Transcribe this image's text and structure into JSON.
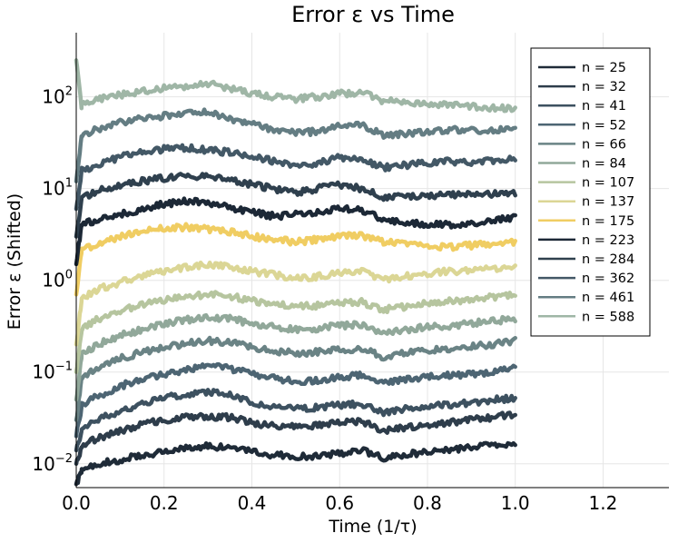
{
  "chart_data": {
    "type": "line",
    "title": "Error ε vs Time",
    "xlabel": "Time (1/τ)",
    "ylabel": "Error ε (Shifted)",
    "yscale": "log",
    "xlim": [
      0,
      1.35
    ],
    "ylim": [
      0.0055,
      500
    ],
    "xticks": [
      0.0,
      0.2,
      0.4,
      0.6,
      0.8,
      1.0,
      1.2
    ],
    "xtick_labels": [
      "0.0",
      "0.2",
      "0.4",
      "0.6",
      "0.8",
      "1.0",
      "1.2"
    ],
    "yticks": [
      0.01,
      0.1,
      1,
      10,
      100
    ],
    "ytick_labels": [
      {
        "base": "10",
        "exp": "−2"
      },
      {
        "base": "10",
        "exp": "−1"
      },
      {
        "base": "10",
        "exp": "0"
      },
      {
        "base": "10",
        "exp": "1"
      },
      {
        "base": "10",
        "exp": "2"
      }
    ],
    "grid": true,
    "legend_position": "top-right",
    "x": [
      0.0,
      0.05,
      0.1,
      0.15,
      0.2,
      0.25,
      0.3,
      0.35,
      0.4,
      0.45,
      0.5,
      0.55,
      0.6,
      0.65,
      0.7,
      0.75,
      0.8,
      0.85,
      0.9,
      0.95,
      1.0
    ],
    "series": [
      {
        "name": "n = 25",
        "color": "#1f2b38",
        "y0": 0.006,
        "values": [
          0.008,
          0.01,
          0.011,
          0.0125,
          0.0135,
          0.015,
          0.0155,
          0.015,
          0.0135,
          0.0125,
          0.012,
          0.012,
          0.013,
          0.014,
          0.0115,
          0.0125,
          0.0135,
          0.014,
          0.015,
          0.016,
          0.017
        ]
      },
      {
        "name": "n = 32",
        "color": "#2e3d4b",
        "y0": 0.01,
        "values": [
          0.015,
          0.019,
          0.023,
          0.027,
          0.03,
          0.032,
          0.033,
          0.032,
          0.028,
          0.026,
          0.025,
          0.026,
          0.028,
          0.029,
          0.023,
          0.025,
          0.026,
          0.028,
          0.03,
          0.032,
          0.035
        ]
      },
      {
        "name": "n = 41",
        "color": "#3d5160",
        "y0": 0.014,
        "values": [
          0.022,
          0.03,
          0.038,
          0.045,
          0.052,
          0.058,
          0.06,
          0.056,
          0.046,
          0.042,
          0.04,
          0.041,
          0.044,
          0.045,
          0.036,
          0.04,
          0.042,
          0.044,
          0.046,
          0.05,
          0.052
        ]
      },
      {
        "name": "n = 52",
        "color": "#4d6573",
        "y0": 0.02,
        "values": [
          0.04,
          0.055,
          0.07,
          0.085,
          0.095,
          0.105,
          0.115,
          0.11,
          0.095,
          0.085,
          0.08,
          0.08,
          0.088,
          0.092,
          0.075,
          0.082,
          0.088,
          0.092,
          0.096,
          0.1,
          0.11
        ]
      },
      {
        "name": "n = 66",
        "color": "#6a8385",
        "y0": 0.03,
        "values": [
          0.08,
          0.11,
          0.14,
          0.165,
          0.185,
          0.205,
          0.22,
          0.21,
          0.185,
          0.17,
          0.16,
          0.165,
          0.175,
          0.18,
          0.145,
          0.16,
          0.17,
          0.18,
          0.19,
          0.2,
          0.22
        ]
      },
      {
        "name": "n = 84",
        "color": "#91a89a",
        "y0": 0.05,
        "values": [
          0.15,
          0.2,
          0.25,
          0.29,
          0.33,
          0.37,
          0.39,
          0.38,
          0.34,
          0.31,
          0.29,
          0.3,
          0.32,
          0.33,
          0.27,
          0.29,
          0.31,
          0.32,
          0.34,
          0.36,
          0.38
        ]
      },
      {
        "name": "n = 107",
        "color": "#b6c59f",
        "y0": 0.1,
        "values": [
          0.28,
          0.38,
          0.46,
          0.54,
          0.6,
          0.66,
          0.7,
          0.67,
          0.6,
          0.55,
          0.52,
          0.53,
          0.56,
          0.58,
          0.48,
          0.52,
          0.56,
          0.59,
          0.62,
          0.66,
          0.7
        ]
      },
      {
        "name": "n = 137",
        "color": "#dbd695",
        "y0": 0.2,
        "values": [
          0.6,
          0.8,
          0.95,
          1.1,
          1.25,
          1.4,
          1.5,
          1.4,
          1.25,
          1.15,
          1.05,
          1.1,
          1.2,
          1.25,
          1.0,
          1.1,
          1.2,
          1.25,
          1.3,
          1.35,
          1.45
        ]
      },
      {
        "name": "n = 175",
        "color": "#f0cd62",
        "y0": 0.7,
        "values": [
          2.0,
          2.5,
          3.0,
          3.4,
          3.7,
          3.8,
          3.6,
          3.4,
          3.0,
          2.8,
          2.6,
          2.8,
          3.0,
          3.1,
          2.6,
          2.5,
          2.4,
          2.3,
          2.4,
          2.5,
          2.6
        ]
      },
      {
        "name": "n = 223",
        "color": "#1c2836",
        "y0": 1.5,
        "values": [
          4.0,
          4.5,
          5.2,
          6.0,
          6.8,
          7.3,
          7.0,
          6.2,
          5.5,
          5.0,
          5.2,
          5.6,
          6.0,
          5.8,
          4.6,
          4.3,
          4.1,
          4.0,
          4.2,
          4.5,
          4.8
        ]
      },
      {
        "name": "n = 284",
        "color": "#2f404e",
        "y0": 3.0,
        "values": [
          7.5,
          9.5,
          11.0,
          12.0,
          13.0,
          14.0,
          13.5,
          12.5,
          11.0,
          10.0,
          9.0,
          10.0,
          11.0,
          10.0,
          8.0,
          8.2,
          8.4,
          8.6,
          8.5,
          8.8,
          9.0
        ]
      },
      {
        "name": "n = 362",
        "color": "#435866",
        "y0": 6.0,
        "values": [
          15.0,
          18.0,
          22.0,
          25.0,
          27.0,
          28.0,
          26.0,
          25.0,
          22.0,
          20.0,
          18.0,
          19.0,
          22.0,
          21.0,
          17.0,
          18.0,
          19.0,
          20.0,
          19.0,
          20.0,
          21.0
        ]
      },
      {
        "name": "n = 461",
        "color": "#647d83",
        "y0": 12.0,
        "values": [
          35.0,
          45.0,
          52.0,
          58.0,
          62.0,
          68.0,
          70.0,
          58.0,
          50.0,
          44.0,
          40.0,
          42.0,
          48.0,
          50.0,
          38.0,
          40.0,
          42.0,
          44.0,
          43.0,
          44.0,
          46.0
        ]
      },
      {
        "name": "n = 588",
        "color": "#9fb6a6",
        "y0": 250.0,
        "values": [
          80.0,
          95.0,
          105.0,
          115.0,
          125.0,
          130.0,
          140.0,
          125.0,
          110.0,
          100.0,
          95.0,
          100.0,
          108.0,
          112.0,
          90.0,
          88.0,
          85.0,
          82.0,
          78.0,
          76.0,
          74.0
        ]
      }
    ]
  }
}
